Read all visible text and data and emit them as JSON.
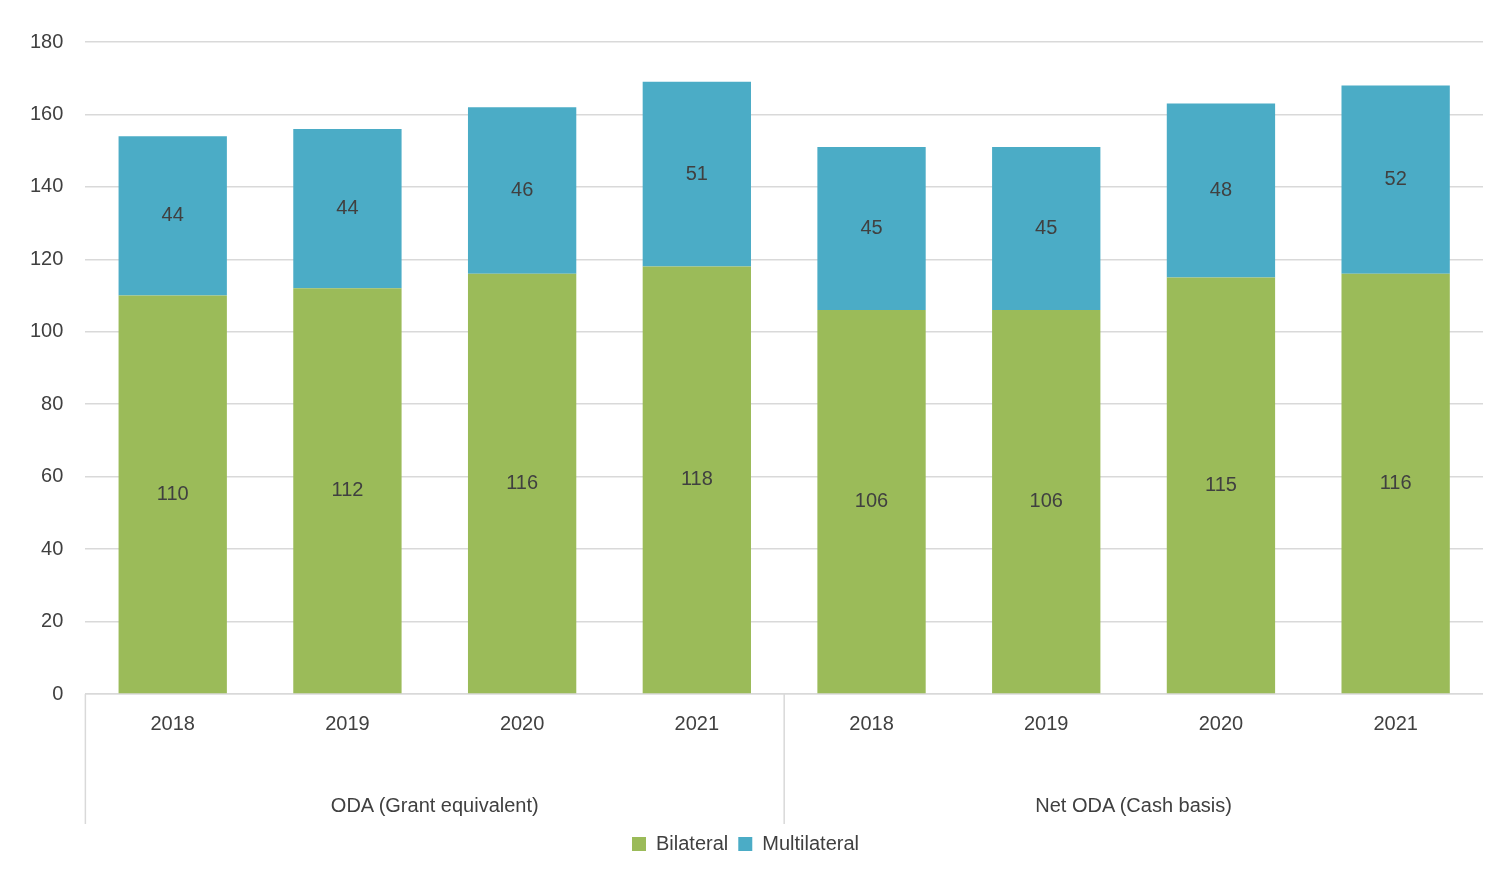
{
  "chart_data": {
    "type": "bar",
    "categories": [
      "2018",
      "2019",
      "2020",
      "2021",
      "2018",
      "2019",
      "2020",
      "2021"
    ],
    "series": [
      {
        "name": "Bilateral",
        "color": "#9bbb59",
        "values": [
          110,
          112,
          116,
          118,
          106,
          106,
          115,
          116
        ]
      },
      {
        "name": "Multilateral",
        "color": "#4bacc6",
        "values": [
          44,
          44,
          46,
          51,
          45,
          45,
          48,
          52
        ]
      }
    ],
    "stacked": true,
    "ylim": [
      0,
      180
    ],
    "yticks": [
      0,
      20,
      40,
      60,
      80,
      100,
      120,
      140,
      160,
      180
    ],
    "grid": "y",
    "legend": "bottom",
    "data_labels": true,
    "annotations": [
      "ODA (Grant equivalent)",
      "Net ODA (Cash basis)"
    ]
  }
}
